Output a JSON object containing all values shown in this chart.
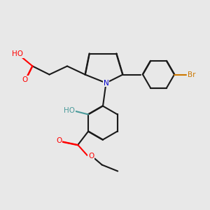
{
  "background_color": "#e8e8e8",
  "bond_color": "#1a1a1a",
  "atom_colors": {
    "O": "#ff0000",
    "N": "#0000cc",
    "Br": "#cc7700",
    "H_teal": "#4a9a9a",
    "C": "#1a1a1a"
  },
  "lw": 1.5,
  "lw_double": 1.5
}
